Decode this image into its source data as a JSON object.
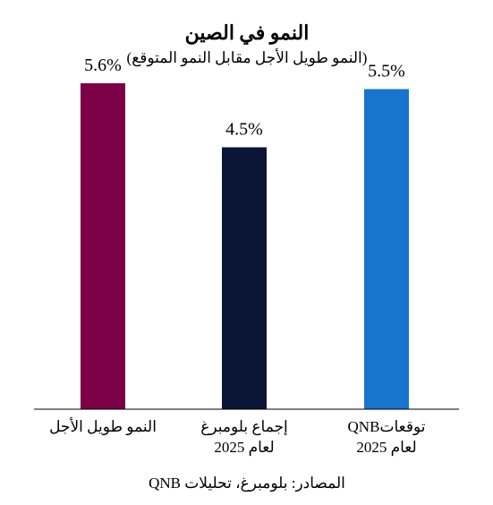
{
  "chart_data": {
    "type": "bar",
    "title": "النمو في الصين",
    "subtitle": "(النمو طويل الأجل مقابل النمو المتوقع)",
    "categories": [
      [
        "النمو طويل الأجل"
      ],
      [
        "إجماع بلومبرغ",
        "لعام 2025"
      ],
      [
        "توقعاتQNB",
        "لعام 2025"
      ]
    ],
    "values": [
      5.6,
      4.5,
      5.5
    ],
    "value_labels": [
      "5.6%",
      "4.5%",
      "5.5%"
    ],
    "colors": [
      "#7B0046",
      "#0B1535",
      "#1874CD"
    ],
    "ylim": [
      0,
      6
    ],
    "grid": false,
    "legend": "none",
    "source": "المصادر: بلومبرغ، تحليلات QNB"
  }
}
